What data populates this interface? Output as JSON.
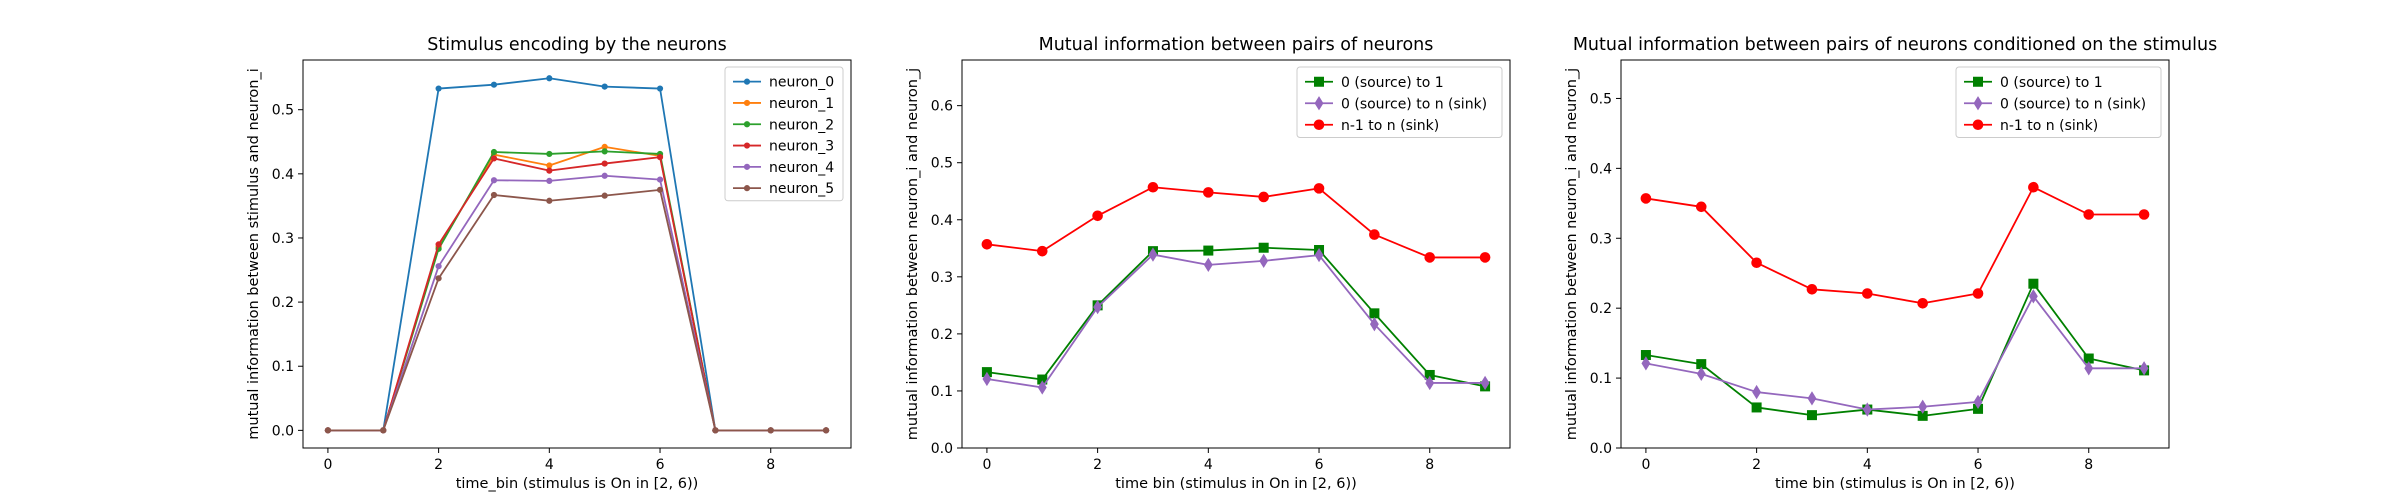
{
  "chart_data": [
    {
      "type": "line",
      "title": "Stimulus encoding by the neurons",
      "xlabel": "time_bin (stimulus is On in [2, 6))",
      "ylabel": "mutual information between stimulus and neuron_i",
      "xlim": [
        -0.45,
        9.45
      ],
      "ylim": [
        -0.0275,
        0.5775
      ],
      "xticks": [
        0,
        2,
        4,
        6,
        8
      ],
      "yticks": [
        0.0,
        0.1,
        0.2,
        0.3,
        0.4,
        0.5
      ],
      "ytick_labels": [
        "0.0",
        "0.1",
        "0.2",
        "0.3",
        "0.4",
        "0.5"
      ],
      "legend": "top-right",
      "x": [
        0,
        1,
        2,
        3,
        4,
        5,
        6,
        7,
        8,
        9
      ],
      "series": [
        {
          "name": "neuron_0",
          "color": "#1f77b4",
          "marker": "dot",
          "values": [
            0,
            0,
            0.533,
            0.539,
            0.549,
            0.536,
            0.533,
            0,
            0,
            0
          ]
        },
        {
          "name": "neuron_1",
          "color": "#ff7f0e",
          "marker": "dot",
          "values": [
            0,
            0,
            0.286,
            0.43,
            0.413,
            0.442,
            0.428,
            0,
            0,
            0
          ]
        },
        {
          "name": "neuron_2",
          "color": "#2ca02c",
          "marker": "dot",
          "values": [
            0,
            0,
            0.283,
            0.434,
            0.431,
            0.435,
            0.431,
            0,
            0,
            0
          ]
        },
        {
          "name": "neuron_3",
          "color": "#d62728",
          "marker": "dot",
          "values": [
            0,
            0,
            0.29,
            0.424,
            0.405,
            0.416,
            0.426,
            0,
            0,
            0
          ]
        },
        {
          "name": "neuron_4",
          "color": "#9467bd",
          "marker": "dot",
          "values": [
            0,
            0,
            0.256,
            0.39,
            0.389,
            0.397,
            0.391,
            0,
            0,
            0
          ]
        },
        {
          "name": "neuron_5",
          "color": "#8c564b",
          "marker": "dot",
          "values": [
            0,
            0,
            0.237,
            0.367,
            0.358,
            0.366,
            0.375,
            0,
            0,
            0
          ]
        }
      ]
    },
    {
      "type": "line",
      "title": "Mutual information between pairs of neurons",
      "xlabel": "time bin (stimulus in On in [2, 6))",
      "ylabel": "mutual information between neuron_i and neuron_j",
      "xlim": [
        -0.45,
        9.45
      ],
      "ylim": [
        0.0,
        0.68
      ],
      "xticks": [
        0,
        2,
        4,
        6,
        8
      ],
      "yticks": [
        0.0,
        0.1,
        0.2,
        0.3,
        0.4,
        0.5,
        0.6
      ],
      "ytick_labels": [
        "0.0",
        "0.1",
        "0.2",
        "0.3",
        "0.4",
        "0.5",
        "0.6"
      ],
      "legend": "top-right",
      "x": [
        0,
        1,
        2,
        3,
        4,
        5,
        6,
        7,
        8,
        9
      ],
      "series": [
        {
          "name": "0 (source) to 1",
          "color": "#008000",
          "marker": "square",
          "values": [
            0.133,
            0.12,
            0.25,
            0.345,
            0.346,
            0.351,
            0.347,
            0.236,
            0.128,
            0.108
          ]
        },
        {
          "name": "0 (source) to n (sink)",
          "color": "#9467bd",
          "marker": "diamond",
          "values": [
            0.121,
            0.106,
            0.247,
            0.339,
            0.321,
            0.328,
            0.338,
            0.217,
            0.114,
            0.114
          ]
        },
        {
          "name": "n-1 to n (sink)",
          "color": "#ff0000",
          "marker": "circle",
          "values": [
            0.357,
            0.345,
            0.407,
            0.457,
            0.448,
            0.44,
            0.455,
            0.374,
            0.334,
            0.334
          ]
        }
      ]
    },
    {
      "type": "line",
      "title": "Mutual information between pairs of neurons conditioned on the stimulus",
      "xlabel": "time bin (stimulus is On in [2, 6))",
      "ylabel": "mutual information between neuron_i and neuron_j",
      "xlim": [
        -0.45,
        9.45
      ],
      "ylim": [
        0.0,
        0.555
      ],
      "xticks": [
        0,
        2,
        4,
        6,
        8
      ],
      "yticks": [
        0.0,
        0.1,
        0.2,
        0.3,
        0.4,
        0.5
      ],
      "ytick_labels": [
        "0.0",
        "0.1",
        "0.2",
        "0.3",
        "0.4",
        "0.5"
      ],
      "legend": "top-right",
      "x": [
        0,
        1,
        2,
        3,
        4,
        5,
        6,
        7,
        8,
        9
      ],
      "series": [
        {
          "name": "0 (source) to 1",
          "color": "#008000",
          "marker": "square",
          "values": [
            0.133,
            0.12,
            0.058,
            0.047,
            0.055,
            0.046,
            0.056,
            0.235,
            0.128,
            0.111
          ]
        },
        {
          "name": "0 (source) to n (sink)",
          "color": "#9467bd",
          "marker": "diamond",
          "values": [
            0.121,
            0.106,
            0.08,
            0.071,
            0.055,
            0.059,
            0.066,
            0.217,
            0.114,
            0.114
          ]
        },
        {
          "name": "n-1 to n (sink)",
          "color": "#ff0000",
          "marker": "circle",
          "values": [
            0.357,
            0.345,
            0.265,
            0.227,
            0.221,
            0.207,
            0.221,
            0.373,
            0.334,
            0.334
          ]
        }
      ]
    }
  ]
}
